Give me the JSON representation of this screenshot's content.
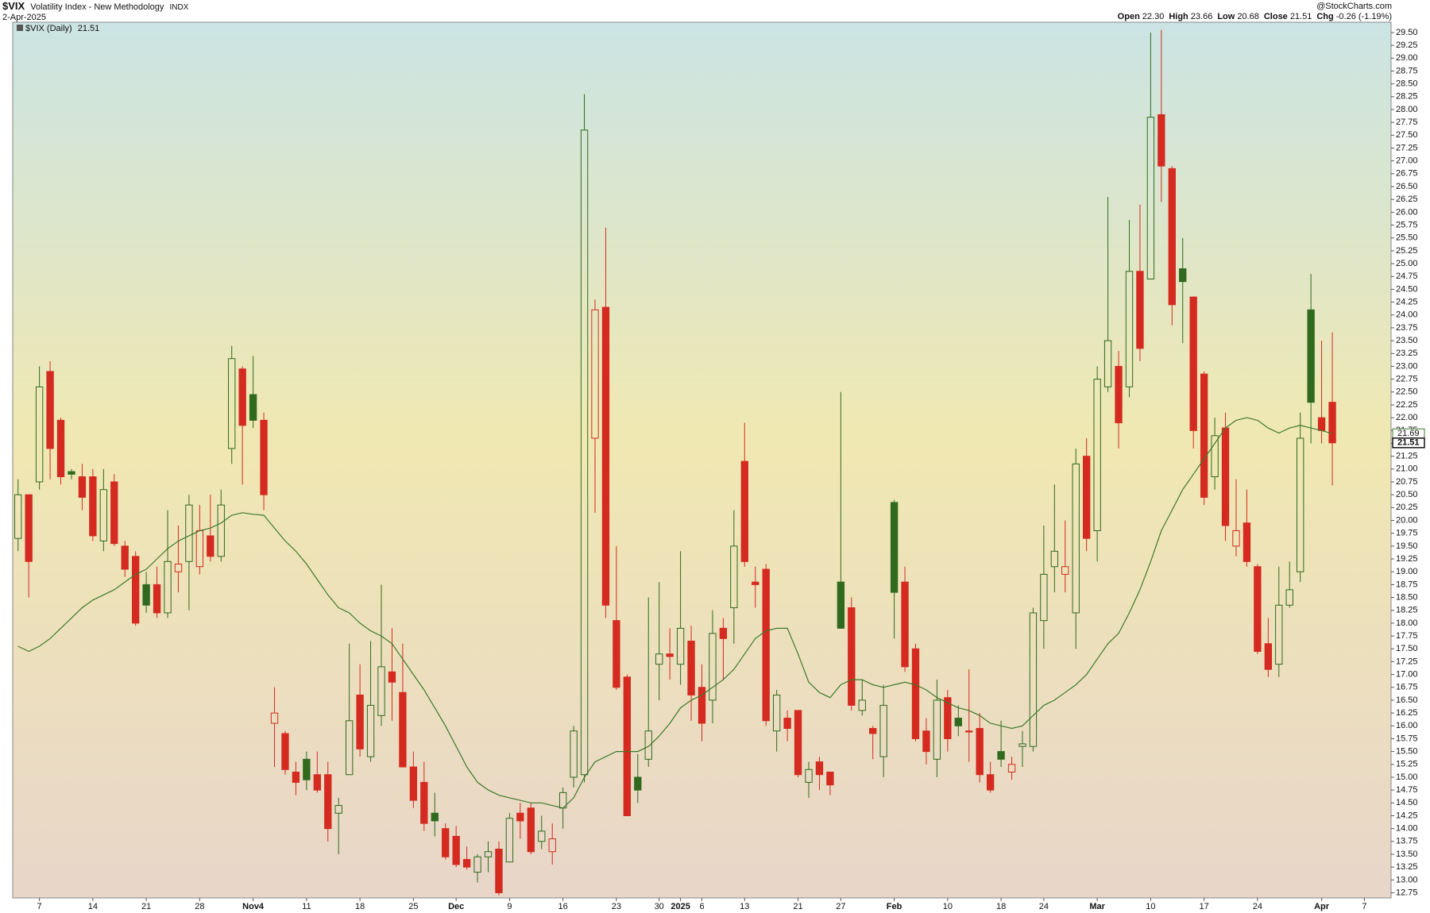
{
  "chart_data": {
    "type": "candlestick",
    "title": "$VIX",
    "subtitle": "Volatility Index - New Methodology",
    "exchange": "INDX",
    "date": "2-Apr-2025",
    "credit": "@StockCharts.com",
    "legend_label": "$VIX (Daily)",
    "quote": [
      {
        "label": "Open",
        "value": 22.3,
        "value_label": "22.30"
      },
      {
        "label": "High",
        "value": 23.66
      },
      {
        "label": "Low",
        "value": 20.68
      },
      {
        "label": "Close",
        "value": 21.51
      },
      {
        "label": "Chg",
        "value": -0.26,
        "pct": -1.19,
        "pct_label": "(-1.19%)"
      }
    ],
    "up_color": "#2f6a1e",
    "down_color": "#d42a20",
    "categories": [
      null,
      null,
      "7",
      null,
      null,
      null,
      null,
      "14",
      null,
      null,
      null,
      null,
      "21",
      null,
      null,
      null,
      null,
      "28",
      null,
      null,
      null,
      null,
      "Nov4",
      null,
      null,
      null,
      null,
      "11",
      null,
      null,
      null,
      null,
      "18",
      null,
      null,
      null,
      null,
      "25",
      null,
      null,
      null,
      "Dec",
      null,
      null,
      null,
      null,
      "9",
      null,
      null,
      null,
      null,
      "16",
      null,
      null,
      null,
      null,
      "23",
      null,
      null,
      null,
      "30",
      null,
      "2025",
      null,
      "6",
      null,
      null,
      null,
      "13",
      null,
      null,
      null,
      null,
      "21",
      null,
      null,
      null,
      "27",
      null,
      null,
      null,
      null,
      "Feb",
      null,
      null,
      null,
      null,
      "10",
      null,
      null,
      null,
      null,
      "18",
      null,
      null,
      null,
      "24",
      null,
      null,
      null,
      null,
      "Mar",
      null,
      null,
      null,
      null,
      "10",
      null,
      null,
      null,
      null,
      "17",
      null,
      null,
      null,
      null,
      "24",
      null,
      null,
      null,
      null,
      null,
      "Apr",
      null,
      null,
      null,
      "7",
      null,
      null
    ],
    "ohlc": {
      "open": [
        19.65,
        20.5,
        20.75,
        22.9,
        21.95,
        20.95,
        20.85,
        20.85,
        19.6,
        20.75,
        19.5,
        19.3,
        18.75,
        18.75,
        18.2,
        19.0,
        19.2,
        19.1,
        19.7,
        19.3,
        21.4,
        22.95,
        22.45,
        21.95,
        16.05,
        15.85,
        15.1,
        15.35,
        15.05,
        15.05,
        14.3,
        15.05,
        16.6,
        15.4,
        16.2,
        17.05,
        16.65,
        15.2,
        14.9,
        14.3,
        14.0,
        13.85,
        13.4,
        13.15,
        13.45,
        13.6,
        13.35,
        14.3,
        14.4,
        13.75,
        13.55,
        14.4,
        15.0,
        15.05,
        21.6,
        24.15,
        18.05,
        16.95,
        15.0,
        15.35,
        17.2,
        17.4,
        17.2,
        17.65,
        16.75,
        16.5,
        17.9,
        18.3,
        21.15,
        18.8,
        19.05,
        15.9,
        16.15,
        16.3,
        14.9,
        15.3,
        15.1,
        18.8,
        18.3,
        16.3,
        15.95,
        15.4,
        20.35,
        18.8,
        17.5,
        15.9,
        15.35,
        16.55,
        16.15,
        15.9,
        15.95,
        15.05,
        15.5,
        15.1,
        15.6,
        15.6,
        18.05,
        19.1,
        18.95,
        18.2,
        21.25,
        19.8,
        22.6,
        23.0,
        22.6,
        24.85,
        24.7,
        27.9,
        26.85,
        24.9,
        24.35,
        22.85,
        20.85,
        21.8,
        19.5,
        19.95,
        19.1,
        17.6,
        17.2,
        18.35,
        19.0,
        24.1,
        22.0,
        22.3,
        null,
        null,
        null,
        null,
        null
      ],
      "high": [
        20.8,
        20.5,
        23.0,
        23.1,
        22.0,
        21.0,
        21.1,
        21.0,
        21.0,
        20.9,
        19.6,
        19.4,
        19.0,
        19.1,
        20.2,
        19.9,
        20.5,
        20.3,
        20.5,
        20.6,
        23.4,
        23.0,
        23.2,
        22.1,
        16.75,
        15.9,
        15.3,
        15.5,
        15.5,
        15.3,
        14.6,
        17.6,
        17.2,
        17.65,
        18.75,
        17.9,
        17.6,
        15.5,
        15.3,
        14.7,
        14.1,
        14.05,
        13.65,
        13.5,
        13.75,
        13.75,
        14.3,
        14.5,
        14.5,
        14.25,
        14.1,
        14.8,
        16.0,
        28.3,
        24.3,
        25.7,
        19.5,
        17.0,
        15.45,
        18.5,
        18.8,
        17.9,
        19.4,
        17.95,
        17.2,
        18.25,
        18.1,
        20.2,
        21.9,
        19.1,
        19.15,
        16.7,
        16.3,
        16.3,
        15.3,
        15.4,
        15.1,
        22.5,
        18.5,
        16.9,
        16.0,
        16.8,
        20.4,
        19.1,
        17.6,
        16.15,
        16.9,
        16.7,
        16.4,
        17.1,
        16.25,
        15.3,
        16.1,
        15.4,
        15.9,
        18.3,
        19.9,
        20.7,
        20.0,
        21.4,
        21.6,
        23.0,
        26.3,
        23.3,
        25.85,
        26.15,
        29.5,
        29.55,
        26.9,
        25.5,
        24.35,
        22.9,
        22.0,
        22.1,
        20.8,
        20.6,
        19.15,
        18.1,
        19.1,
        19.2,
        22.1,
        24.8,
        23.5,
        23.66,
        null,
        null,
        null,
        null,
        null
      ],
      "low": [
        19.4,
        18.5,
        20.6,
        20.8,
        20.7,
        20.8,
        20.2,
        19.6,
        19.4,
        19.5,
        18.9,
        17.95,
        18.2,
        18.1,
        18.1,
        18.6,
        18.25,
        18.95,
        19.2,
        19.2,
        21.1,
        20.7,
        21.8,
        20.2,
        15.2,
        15.05,
        14.65,
        14.75,
        14.7,
        13.75,
        13.5,
        15.05,
        15.4,
        15.3,
        16.0,
        16.1,
        15.2,
        14.4,
        13.95,
        13.85,
        13.4,
        13.25,
        13.2,
        12.95,
        13.15,
        12.7,
        13.35,
        13.8,
        13.5,
        13.6,
        13.3,
        14.0,
        14.8,
        14.9,
        20.15,
        18.1,
        16.7,
        14.25,
        14.5,
        15.2,
        16.5,
        16.9,
        16.8,
        16.1,
        15.7,
        16.05,
        16.9,
        17.6,
        19.1,
        18.3,
        16.0,
        15.5,
        15.7,
        15.0,
        14.6,
        14.75,
        14.65,
        17.9,
        16.3,
        16.2,
        15.35,
        15.0,
        17.7,
        17.05,
        15.7,
        15.25,
        15.0,
        15.5,
        15.8,
        15.3,
        14.9,
        14.7,
        15.2,
        14.95,
        15.2,
        15.5,
        17.5,
        18.6,
        18.6,
        17.5,
        19.4,
        19.2,
        22.5,
        21.4,
        22.4,
        23.1,
        24.7,
        26.2,
        23.8,
        23.45,
        21.4,
        20.3,
        20.6,
        19.6,
        19.3,
        19.1,
        17.4,
        16.95,
        16.95,
        18.3,
        18.8,
        21.5,
        21.5,
        20.68,
        null,
        null,
        null,
        null,
        null
      ],
      "close": [
        20.5,
        19.2,
        22.6,
        21.4,
        20.85,
        20.9,
        20.45,
        19.7,
        20.6,
        19.55,
        19.05,
        18.0,
        18.35,
        18.2,
        19.2,
        19.15,
        20.3,
        19.8,
        19.3,
        20.3,
        23.15,
        21.85,
        21.95,
        20.5,
        16.25,
        15.15,
        14.9,
        14.95,
        14.75,
        14.0,
        14.45,
        16.1,
        15.55,
        16.4,
        17.15,
        16.85,
        15.2,
        14.55,
        14.1,
        14.15,
        13.45,
        13.3,
        13.25,
        13.45,
        13.55,
        12.75,
        14.2,
        14.15,
        13.55,
        13.95,
        13.8,
        14.7,
        15.9,
        27.6,
        24.1,
        18.35,
        16.75,
        14.25,
        14.75,
        15.9,
        17.4,
        17.35,
        17.9,
        16.6,
        16.05,
        17.8,
        17.7,
        19.5,
        19.2,
        18.75,
        16.1,
        16.6,
        15.95,
        15.05,
        15.15,
        15.05,
        14.85,
        17.9,
        16.4,
        16.5,
        15.85,
        16.4,
        18.6,
        17.15,
        15.75,
        15.5,
        16.5,
        15.75,
        16.0,
        15.88,
        15.05,
        14.75,
        15.35,
        15.25,
        15.65,
        18.2,
        18.95,
        19.4,
        19.1,
        21.1,
        19.65,
        22.75,
        23.5,
        21.9,
        24.85,
        23.35,
        27.85,
        26.9,
        24.2,
        24.65,
        21.75,
        20.45,
        21.65,
        19.9,
        19.8,
        19.2,
        17.45,
        17.1,
        18.35,
        18.65,
        21.6,
        22.3,
        21.75,
        21.51,
        null,
        null,
        null,
        null,
        null
      ]
    },
    "ma": {
      "color": "#3d7a2c",
      "values": [
        17.55,
        17.45,
        17.55,
        17.7,
        17.9,
        18.1,
        18.3,
        18.45,
        18.55,
        18.65,
        18.8,
        18.95,
        19.05,
        19.25,
        19.45,
        19.6,
        19.7,
        19.8,
        19.85,
        19.95,
        20.1,
        20.15,
        20.12,
        20.1,
        19.85,
        19.6,
        19.4,
        19.15,
        18.85,
        18.55,
        18.3,
        18.2,
        18.0,
        17.85,
        17.75,
        17.6,
        17.3,
        17.0,
        16.7,
        16.35,
        16.0,
        15.6,
        15.2,
        14.9,
        14.75,
        14.65,
        14.6,
        14.55,
        14.5,
        14.5,
        14.45,
        14.4,
        14.6,
        15.0,
        15.3,
        15.4,
        15.5,
        15.5,
        15.5,
        15.6,
        15.8,
        16.05,
        16.35,
        16.5,
        16.6,
        16.75,
        16.9,
        17.1,
        17.4,
        17.7,
        17.85,
        17.9,
        17.9,
        17.4,
        16.85,
        16.65,
        16.55,
        16.8,
        16.9,
        16.9,
        16.8,
        16.75,
        16.8,
        16.85,
        16.8,
        16.7,
        16.55,
        16.45,
        16.35,
        16.3,
        16.2,
        16.05,
        16.0,
        15.95,
        16.0,
        16.2,
        16.4,
        16.5,
        16.65,
        16.8,
        17.0,
        17.3,
        17.6,
        17.8,
        18.2,
        18.65,
        19.2,
        19.8,
        20.2,
        20.6,
        20.9,
        21.2,
        21.5,
        21.8,
        21.95,
        22.0,
        21.95,
        21.8,
        21.7,
        21.8,
        21.85,
        21.8,
        21.75,
        21.69,
        null,
        null,
        null,
        null,
        null
      ]
    },
    "ylim": [
      12.65,
      29.7
    ],
    "yticks": [
      12.75,
      {
        "value": 13,
        "label": "13.00"
      },
      13.25,
      {
        "value": 13.5,
        "label": "13.50"
      },
      13.75,
      {
        "value": 14,
        "label": "14.00"
      },
      14.25,
      {
        "value": 14.5,
        "label": "14.50"
      },
      14.75,
      {
        "value": 15,
        "label": "15.00"
      },
      15.25,
      {
        "value": 15.5,
        "label": "15.50"
      },
      15.75,
      {
        "value": 16,
        "label": "16.00"
      },
      16.25,
      {
        "value": 16.5,
        "label": "16.50"
      },
      16.75,
      {
        "value": 17,
        "label": "17.00"
      },
      17.25,
      {
        "value": 17.5,
        "label": "17.50"
      },
      17.75,
      {
        "value": 18,
        "label": "18.00"
      },
      18.25,
      {
        "value": 18.5,
        "label": "18.50"
      },
      18.75,
      {
        "value": 19,
        "label": "19.00"
      },
      19.25,
      {
        "value": 19.5,
        "label": "19.50"
      },
      19.75,
      {
        "value": 20,
        "label": "20.00"
      },
      20.25,
      {
        "value": 20.5,
        "label": "20.50"
      },
      20.75,
      {
        "value": 21,
        "label": "21.00"
      },
      21.25,
      {
        "value": 21.5,
        "label": "21.50"
      },
      21.75,
      {
        "value": 22,
        "label": "22.00"
      },
      22.25,
      {
        "value": 22.5,
        "label": "22.50"
      },
      22.75,
      {
        "value": 23,
        "label": "23.00"
      },
      23.25,
      {
        "value": 23.5,
        "label": "23.50"
      },
      23.75,
      {
        "value": 24,
        "label": "24.00"
      },
      24.25,
      {
        "value": 24.5,
        "label": "24.50"
      },
      24.75,
      {
        "value": 25,
        "label": "25.00"
      },
      25.25,
      {
        "value": 25.5,
        "label": "25.50"
      },
      25.75,
      {
        "value": 26,
        "label": "26.00"
      },
      26.25,
      {
        "value": 26.5,
        "label": "26.50"
      },
      26.75,
      {
        "value": 27,
        "label": "27.00"
      },
      27.25,
      {
        "value": 27.5,
        "label": "27.50"
      },
      27.75,
      {
        "value": 28,
        "label": "28.00"
      },
      28.25,
      {
        "value": 28.5,
        "label": "28.50"
      },
      28.75,
      {
        "value": 29,
        "label": "29.00"
      },
      29.25,
      {
        "value": 29.5,
        "label": "29.50"
      }
    ]
  }
}
